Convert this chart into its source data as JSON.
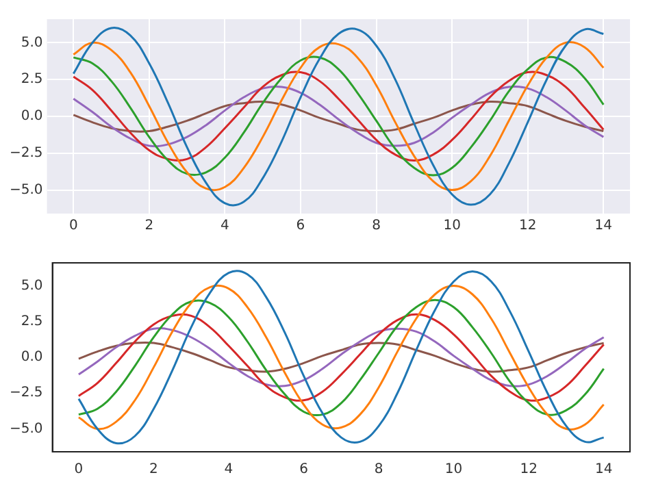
{
  "chart_data": [
    {
      "type": "line",
      "marker": "none",
      "grid": true,
      "x": [
        0,
        0.5,
        1,
        1.5,
        2,
        2.5,
        3,
        3.5,
        4,
        4.5,
        5,
        5.5,
        6,
        6.5,
        7,
        7.5,
        8,
        8.5,
        9,
        9.5,
        10,
        10.5,
        11,
        11.5,
        12,
        12.5,
        13,
        13.5,
        14
      ],
      "xlim": [
        -0.7,
        14.7
      ],
      "xticks": [
        0,
        2,
        4,
        6,
        8,
        10,
        12,
        14
      ],
      "ylim": [
        -6.6,
        6.6
      ],
      "yticks": [
        {
          "value": -5,
          "label": "−5.0"
        },
        {
          "value": -2.5,
          "label": "−2.5"
        },
        {
          "value": 0,
          "label": "0.0"
        },
        {
          "value": 2.5,
          "label": "2.5"
        },
        {
          "value": 5,
          "label": "5.0"
        }
      ],
      "series": [
        {
          "color": "#1f77b4",
          "values": [
            2.9,
            5.0,
            6.0,
            5.5,
            3.6,
            0.9,
            -2.1,
            -4.5,
            -5.9,
            -5.8,
            -4.2,
            -1.7,
            1.3,
            3.9,
            5.6,
            5.9,
            4.8,
            2.5,
            -0.5,
            -3.3,
            -5.3,
            -6.0,
            -5.3,
            -3.2,
            -0.4,
            2.5,
            4.8,
            5.9,
            5.6
          ]
        },
        {
          "color": "#ff7f0e",
          "values": [
            4.2,
            5.0,
            4.5,
            3.0,
            0.7,
            -1.8,
            -3.8,
            -4.9,
            -4.8,
            -3.5,
            -1.4,
            1.1,
            3.3,
            4.7,
            4.9,
            4.0,
            2.1,
            -0.4,
            -2.7,
            -4.4,
            -5.0,
            -4.4,
            -2.7,
            -0.3,
            2.1,
            4.0,
            5.0,
            4.7,
            3.3
          ]
        },
        {
          "color": "#2ca02c",
          "values": [
            4.0,
            3.6,
            2.4,
            0.6,
            -1.4,
            -3.0,
            -3.9,
            -3.8,
            -2.8,
            -1.1,
            0.9,
            2.6,
            3.8,
            4.0,
            3.2,
            1.6,
            -0.3,
            -2.2,
            -3.5,
            -4.0,
            -3.5,
            -2.1,
            -0.3,
            1.7,
            3.2,
            4.0,
            3.7,
            2.6,
            0.8
          ]
        },
        {
          "color": "#d62728",
          "values": [
            2.7,
            1.8,
            0.4,
            -1.1,
            -2.3,
            -2.9,
            -2.9,
            -2.1,
            -0.8,
            0.6,
            2.0,
            2.8,
            3.0,
            2.4,
            1.2,
            -0.2,
            -1.6,
            -2.6,
            -3.0,
            -2.6,
            -1.6,
            -0.2,
            1.3,
            2.4,
            3.0,
            2.8,
            2.0,
            0.6,
            -0.9
          ]
        },
        {
          "color": "#9467bd",
          "values": [
            1.2,
            0.3,
            -0.7,
            -1.5,
            -2.0,
            -1.9,
            -1.4,
            -0.6,
            0.4,
            1.3,
            1.9,
            2.0,
            1.6,
            0.8,
            -0.2,
            -1.1,
            -1.8,
            -2.0,
            -1.8,
            -1.1,
            -0.1,
            0.8,
            1.6,
            2.0,
            1.9,
            1.3,
            0.4,
            -0.6,
            -1.4
          ]
        },
        {
          "color": "#8c564b",
          "values": [
            0.1,
            -0.4,
            -0.8,
            -1.0,
            -1.0,
            -0.7,
            -0.3,
            0.2,
            0.7,
            0.9,
            1.0,
            0.8,
            0.4,
            -0.1,
            -0.5,
            -0.9,
            -1.0,
            -0.9,
            -0.5,
            -0.1,
            0.4,
            0.8,
            1.0,
            0.9,
            0.7,
            0.2,
            -0.3,
            -0.7,
            -1.0
          ]
        }
      ]
    },
    {
      "type": "line",
      "marker": "none",
      "grid": false,
      "x": [
        0,
        0.5,
        1,
        1.5,
        2,
        2.5,
        3,
        3.5,
        4,
        4.5,
        5,
        5.5,
        6,
        6.5,
        7,
        7.5,
        8,
        8.5,
        9,
        9.5,
        10,
        10.5,
        11,
        11.5,
        12,
        12.5,
        13,
        13.5,
        14
      ],
      "xlim": [
        -0.7,
        14.7
      ],
      "xticks": [
        0,
        2,
        4,
        6,
        8,
        10,
        12,
        14
      ],
      "ylim": [
        -6.6,
        6.6
      ],
      "yticks": [
        {
          "value": -5,
          "label": "−5.0"
        },
        {
          "value": -2.5,
          "label": "−2.5"
        },
        {
          "value": 0,
          "label": "0.0"
        },
        {
          "value": 2.5,
          "label": "2.5"
        },
        {
          "value": 5,
          "label": "5.0"
        }
      ],
      "series": [
        {
          "color": "#1f77b4",
          "values": [
            -2.9,
            -5.0,
            -6.0,
            -5.5,
            -3.6,
            -0.9,
            2.1,
            4.5,
            5.9,
            5.8,
            4.2,
            1.7,
            -1.3,
            -3.9,
            -5.6,
            -5.9,
            -4.8,
            -2.5,
            0.5,
            3.3,
            5.3,
            6.0,
            5.3,
            3.2,
            0.4,
            -2.5,
            -4.8,
            -5.9,
            -5.6
          ]
        },
        {
          "color": "#ff7f0e",
          "values": [
            -4.2,
            -5.0,
            -4.5,
            -3.0,
            -0.7,
            1.8,
            3.8,
            4.9,
            4.8,
            3.5,
            1.4,
            -1.1,
            -3.3,
            -4.7,
            -4.9,
            -4.0,
            -2.1,
            0.4,
            2.7,
            4.4,
            5.0,
            4.4,
            2.7,
            0.3,
            -2.1,
            -4.0,
            -5.0,
            -4.7,
            -3.3
          ]
        },
        {
          "color": "#2ca02c",
          "values": [
            -4.0,
            -3.6,
            -2.4,
            -0.6,
            1.4,
            3.0,
            3.9,
            3.8,
            2.8,
            1.1,
            -0.9,
            -2.6,
            -3.8,
            -4.0,
            -3.2,
            -1.6,
            0.3,
            2.2,
            3.5,
            4.0,
            3.5,
            2.1,
            0.3,
            -1.7,
            -3.2,
            -4.0,
            -3.7,
            -2.6,
            -0.8
          ]
        },
        {
          "color": "#d62728",
          "values": [
            -2.7,
            -1.8,
            -0.4,
            1.1,
            2.3,
            2.9,
            2.9,
            2.1,
            0.8,
            -0.6,
            -2.0,
            -2.8,
            -3.0,
            -2.4,
            -1.2,
            0.2,
            1.6,
            2.6,
            3.0,
            2.6,
            1.6,
            0.2,
            -1.3,
            -2.4,
            -3.0,
            -2.8,
            -2.0,
            -0.6,
            0.9
          ]
        },
        {
          "color": "#9467bd",
          "values": [
            -1.2,
            -0.3,
            0.7,
            1.5,
            2.0,
            1.9,
            1.4,
            0.6,
            -0.4,
            -1.3,
            -1.9,
            -2.0,
            -1.6,
            -0.8,
            0.2,
            1.1,
            1.8,
            2.0,
            1.8,
            1.1,
            0.1,
            -0.8,
            -1.6,
            -2.0,
            -1.9,
            -1.3,
            -0.4,
            0.6,
            1.4
          ]
        },
        {
          "color": "#8c564b",
          "values": [
            -0.1,
            0.4,
            0.8,
            1.0,
            1.0,
            0.7,
            0.3,
            -0.2,
            -0.7,
            -0.9,
            -1.0,
            -0.8,
            -0.4,
            0.1,
            0.5,
            0.9,
            1.0,
            0.9,
            0.5,
            0.1,
            -0.4,
            -0.8,
            -1.0,
            -0.9,
            -0.7,
            -0.2,
            0.3,
            0.7,
            1.0
          ]
        }
      ]
    }
  ]
}
